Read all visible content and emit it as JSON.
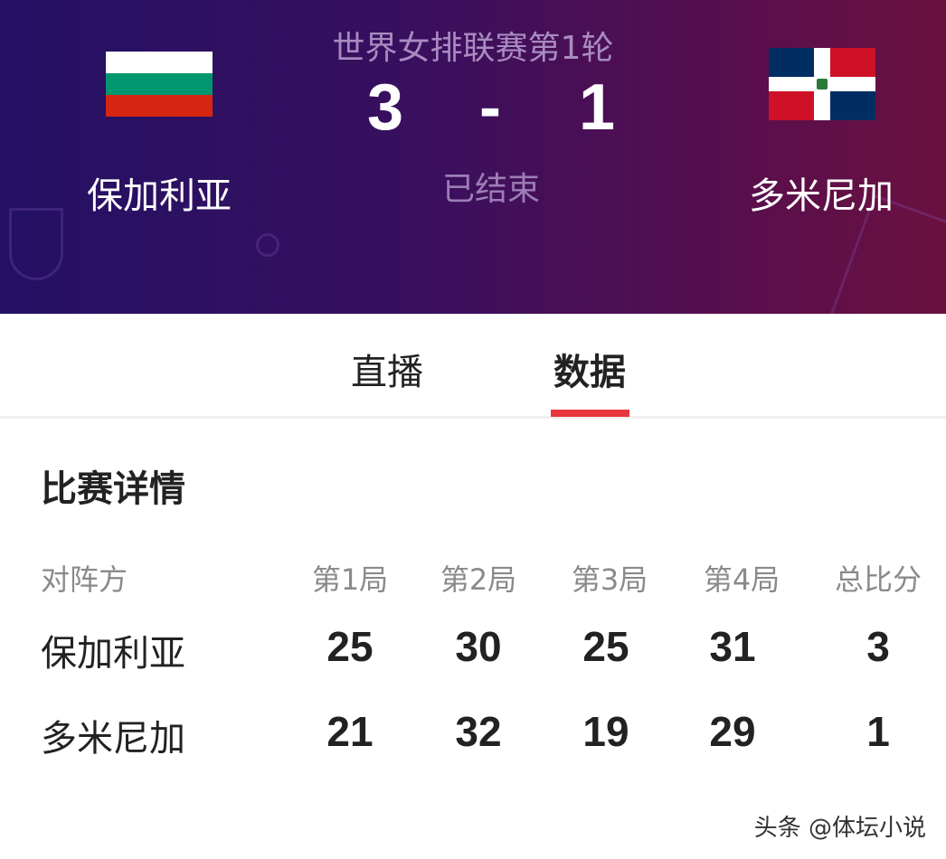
{
  "header": {
    "title": "世界女排联赛第1轮",
    "home": {
      "name": "保加利亚",
      "score": "3",
      "flag": "bulgaria-flag"
    },
    "away": {
      "name": "多米尼加",
      "score": "1",
      "flag": "dominican-republic-flag"
    },
    "separator": "-",
    "status": "已结束"
  },
  "tabs": [
    {
      "label": "直播",
      "active": false
    },
    {
      "label": "数据",
      "active": true
    }
  ],
  "accent": "#e8383d",
  "details": {
    "title": "比赛详情",
    "headers": [
      "对阵方",
      "第1局",
      "第2局",
      "第3局",
      "第4局",
      "总比分"
    ],
    "rows": [
      {
        "team": "保加利亚",
        "scores": [
          "25",
          "30",
          "25",
          "31",
          "3"
        ]
      },
      {
        "team": "多米尼加",
        "scores": [
          "21",
          "32",
          "19",
          "29",
          "1"
        ]
      }
    ]
  },
  "watermark": "头条 @体坛小说"
}
